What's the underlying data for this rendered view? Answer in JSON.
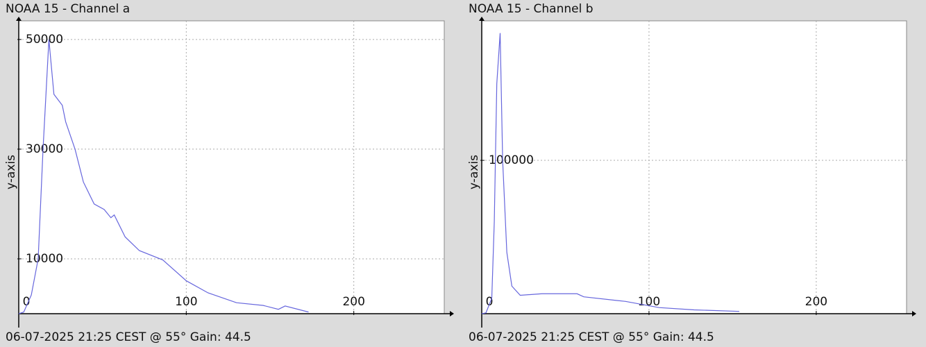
{
  "chart_data": [
    {
      "type": "line",
      "title": "NOAA 15 - Channel a",
      "ylabel": "y-axis",
      "footer": "06-07-2025 21:25 CEST @ 55° Gain: 44.5",
      "x": [
        0,
        3,
        7.5,
        11.6,
        14.5,
        18,
        21,
        26,
        28,
        33.6,
        38.6,
        45,
        51,
        55,
        57,
        63.5,
        72,
        86,
        100,
        113,
        130,
        146,
        155,
        159,
        173
      ],
      "series": [
        {
          "name": "Channel a",
          "color": "#6666dd",
          "values": [
            0,
            300,
            3400,
            10000,
            30000,
            50000,
            40000,
            38000,
            35000,
            30000,
            24000,
            20000,
            19000,
            17500,
            18000,
            14000,
            11500,
            9800,
            6000,
            3800,
            2000,
            1500,
            800,
            1400,
            300
          ]
        }
      ],
      "xlim": [
        0,
        254
      ],
      "ylim": [
        0,
        53400
      ],
      "xticks": [
        0,
        100,
        200
      ],
      "yticks": [
        10000,
        30000,
        50000
      ],
      "grid": true
    },
    {
      "type": "line",
      "title": "NOAA 15 - Channel b",
      "ylabel": "y-axis",
      "footer": "06-07-2025 21:25 CEST @ 55° Gain: 44.5",
      "x": [
        0,
        2.5,
        6,
        7.5,
        9,
        11,
        12.5,
        15,
        18,
        23,
        36,
        57,
        61,
        86,
        106,
        127,
        154
      ],
      "series": [
        {
          "name": "Channel b",
          "color": "#6666dd",
          "values": [
            0,
            500,
            10000,
            60000,
            150000,
            183000,
            100000,
            40000,
            18000,
            12000,
            13000,
            13000,
            11000,
            8000,
            4000,
            2500,
            1500
          ]
        }
      ],
      "xlim": [
        0,
        254
      ],
      "ylim": [
        0,
        191000
      ],
      "xticks": [
        0,
        100,
        200
      ],
      "yticks": [
        100000
      ],
      "grid": true
    }
  ]
}
